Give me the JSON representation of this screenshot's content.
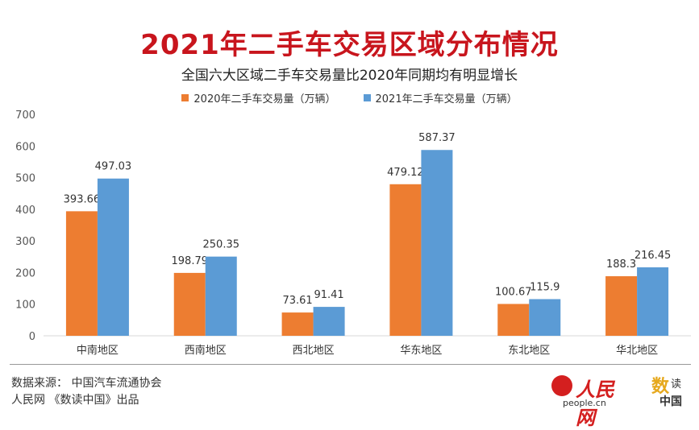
{
  "header": {
    "title": "2021年二手车交易区域分布情况",
    "subtitle": "全国六大区域二手车交易量比2020年同期均有明显增长"
  },
  "chart_data": {
    "type": "bar",
    "categories": [
      "中南地区",
      "西南地区",
      "西北地区",
      "华东地区",
      "东北地区",
      "华北地区"
    ],
    "series": [
      {
        "name": "2020年二手车交易量（万辆）",
        "color": "#ed7d31",
        "values": [
          393.66,
          198.79,
          73.61,
          479.12,
          100.67,
          188.3
        ]
      },
      {
        "name": "2021年二手车交易量（万辆）",
        "color": "#5b9bd5",
        "values": [
          497.03,
          250.35,
          91.41,
          587.37,
          115.9,
          216.45
        ]
      }
    ],
    "yticks": [
      0,
      100,
      200,
      300,
      400,
      500,
      600,
      700
    ],
    "ylim": [
      0,
      700
    ],
    "legend": "top",
    "grid": false
  },
  "footer": {
    "source": "数据来源：  中国汽车流通协会",
    "credit": "人民网 《数读中国》出品"
  },
  "logos": {
    "people_cn": "人民网",
    "people_url": "people.cn",
    "data_logo_a": "数",
    "data_logo_b": "读",
    "data_logo_c": "中国"
  }
}
